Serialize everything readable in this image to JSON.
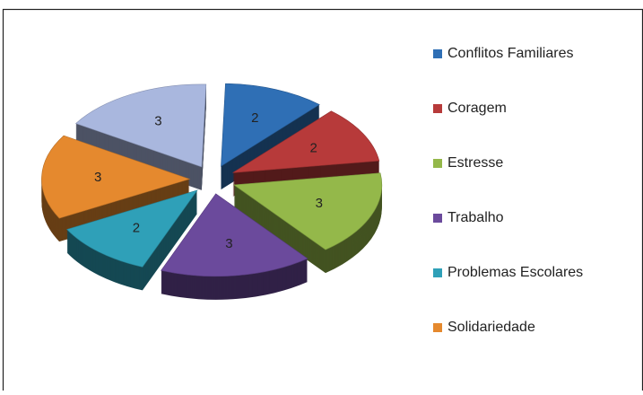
{
  "chart_data": {
    "type": "pie",
    "categories": [
      "Conflitos Familiares",
      "Coragem",
      "Estresse",
      "Trabalho",
      "Problemas Escolares",
      "Solidariedade",
      null
    ],
    "values": [
      2,
      2,
      3,
      3,
      2,
      3,
      3
    ],
    "colors": [
      "#2f6fb5",
      "#b73a3a",
      "#94b84a",
      "#6b4a9c",
      "#2fa0b8",
      "#e5892e",
      "#a9b7de"
    ],
    "legend": "right"
  }
}
